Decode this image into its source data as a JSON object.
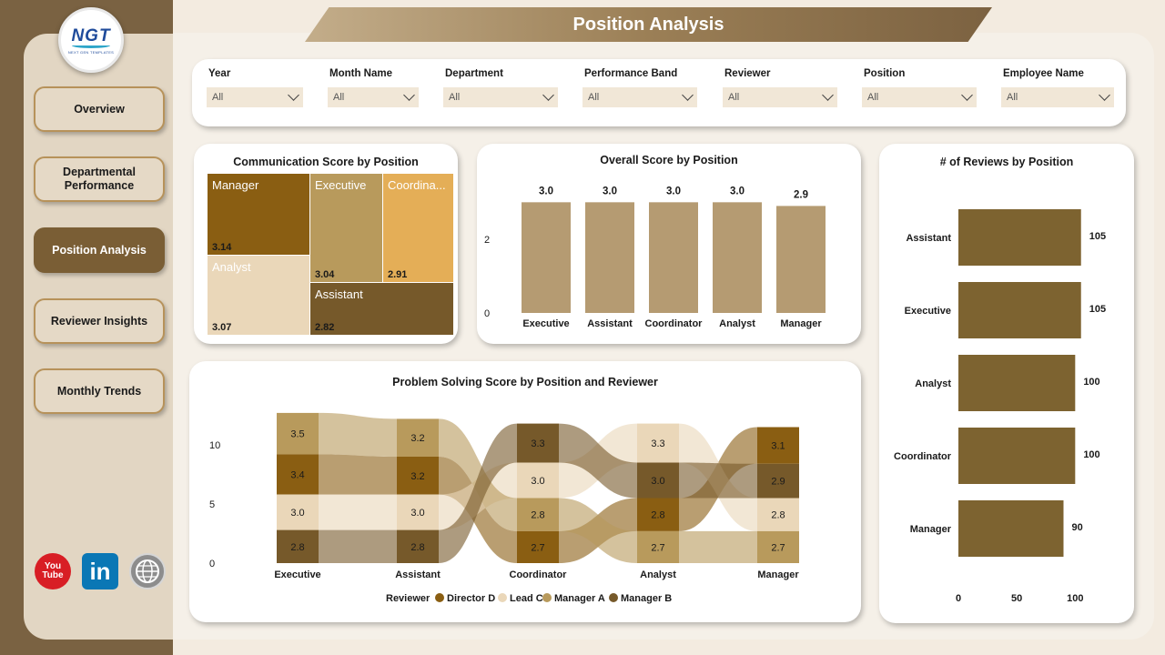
{
  "page_title": "Position Analysis",
  "logo": {
    "text": "NGT",
    "subtitle": "NEXT GEN TEMPLATES"
  },
  "nav": [
    {
      "label": "Overview"
    },
    {
      "label": "Departmental Performance"
    },
    {
      "label": "Position Analysis",
      "active": true
    },
    {
      "label": "Reviewer Insights"
    },
    {
      "label": "Monthly Trends"
    }
  ],
  "social": {
    "youtube": "You Tube",
    "linkedin": "in"
  },
  "filters": [
    {
      "label": "Year",
      "value": "All"
    },
    {
      "label": "Month Name",
      "value": "All"
    },
    {
      "label": "Department",
      "value": "All"
    },
    {
      "label": "Performance Band",
      "value": "All"
    },
    {
      "label": "Reviewer",
      "value": "All"
    },
    {
      "label": "Position",
      "value": "All"
    },
    {
      "label": "Employee Name",
      "value": "All"
    }
  ],
  "colors": {
    "director_d": "#8a5e12",
    "lead_c": "#ead7b9",
    "manager_a": "#b89a5c",
    "manager_b": "#76592a",
    "coordinator_tile": "#e4ae57",
    "bar": "#b59b72",
    "hbar": "#7d6330"
  },
  "chart_data": [
    {
      "type": "treemap",
      "title": "Communication Score by Position",
      "items": [
        {
          "name": "Manager",
          "value": 3.14,
          "label": "3.14"
        },
        {
          "name": "Analyst",
          "value": 3.07,
          "label": "3.07"
        },
        {
          "name": "Executive",
          "value": 3.04,
          "label": "3.04"
        },
        {
          "name": "Coordinator",
          "display": "Coordina...",
          "value": 2.91,
          "label": "2.91"
        },
        {
          "name": "Assistant",
          "value": 2.82,
          "label": "2.82"
        }
      ]
    },
    {
      "type": "bar",
      "title": "Overall Score by Position",
      "categories": [
        "Executive",
        "Assistant",
        "Coordinator",
        "Analyst",
        "Manager"
      ],
      "values": [
        3.0,
        3.0,
        3.0,
        3.0,
        2.9
      ],
      "labels": [
        "3.0",
        "3.0",
        "3.0",
        "3.0",
        "2.9"
      ],
      "yticks": [
        "0",
        "2"
      ],
      "ylim": [
        0,
        3.6
      ]
    },
    {
      "type": "bar",
      "orientation": "horizontal",
      "title": "# of Reviews by Position",
      "categories": [
        "Assistant",
        "Executive",
        "Analyst",
        "Coordinator",
        "Manager"
      ],
      "values": [
        105,
        105,
        100,
        100,
        90
      ],
      "labels": [
        "105",
        "105",
        "100",
        "100",
        "90"
      ],
      "xticks": [
        "0",
        "50",
        "100"
      ],
      "xlim": [
        0,
        113
      ]
    },
    {
      "type": "ribbon",
      "title": "Problem Solving Score by Position and Reviewer",
      "categories": [
        "Executive",
        "Assistant",
        "Coordinator",
        "Analyst",
        "Manager"
      ],
      "yticks": [
        "0",
        "5",
        "10"
      ],
      "legend_title": "Reviewer",
      "series": [
        {
          "name": "Director D",
          "values": [
            3.4,
            3.2,
            2.7,
            2.8,
            3.1
          ]
        },
        {
          "name": "Lead C",
          "values": [
            3.0,
            3.0,
            3.0,
            3.3,
            2.8
          ]
        },
        {
          "name": "Manager A",
          "values": [
            3.5,
            3.2,
            2.8,
            2.7,
            2.7
          ]
        },
        {
          "name": "Manager B",
          "values": [
            2.8,
            2.8,
            3.3,
            3.0,
            2.9
          ]
        }
      ],
      "stacks": [
        [
          {
            "s": "Manager A",
            "v": "3.5"
          },
          {
            "s": "Director D",
            "v": "3.4"
          },
          {
            "s": "Lead C",
            "v": "3.0"
          },
          {
            "s": "Manager B",
            "v": "2.8"
          }
        ],
        [
          {
            "s": "Manager A",
            "v": "3.2"
          },
          {
            "s": "Director D",
            "v": "3.2"
          },
          {
            "s": "Lead C",
            "v": "3.0"
          },
          {
            "s": "Manager B",
            "v": "2.8"
          }
        ],
        [
          {
            "s": "Manager B",
            "v": "3.3"
          },
          {
            "s": "Lead C",
            "v": "3.0"
          },
          {
            "s": "Manager A",
            "v": "2.8"
          },
          {
            "s": "Director D",
            "v": "2.7"
          }
        ],
        [
          {
            "s": "Lead C",
            "v": "3.3"
          },
          {
            "s": "Manager B",
            "v": "3.0"
          },
          {
            "s": "Director D",
            "v": "2.8"
          },
          {
            "s": "Manager A",
            "v": "2.7"
          }
        ],
        [
          {
            "s": "Director D",
            "v": "3.1"
          },
          {
            "s": "Manager B",
            "v": "2.9"
          },
          {
            "s": "Lead C",
            "v": "2.8"
          },
          {
            "s": "Manager A",
            "v": "2.7"
          }
        ]
      ]
    }
  ]
}
